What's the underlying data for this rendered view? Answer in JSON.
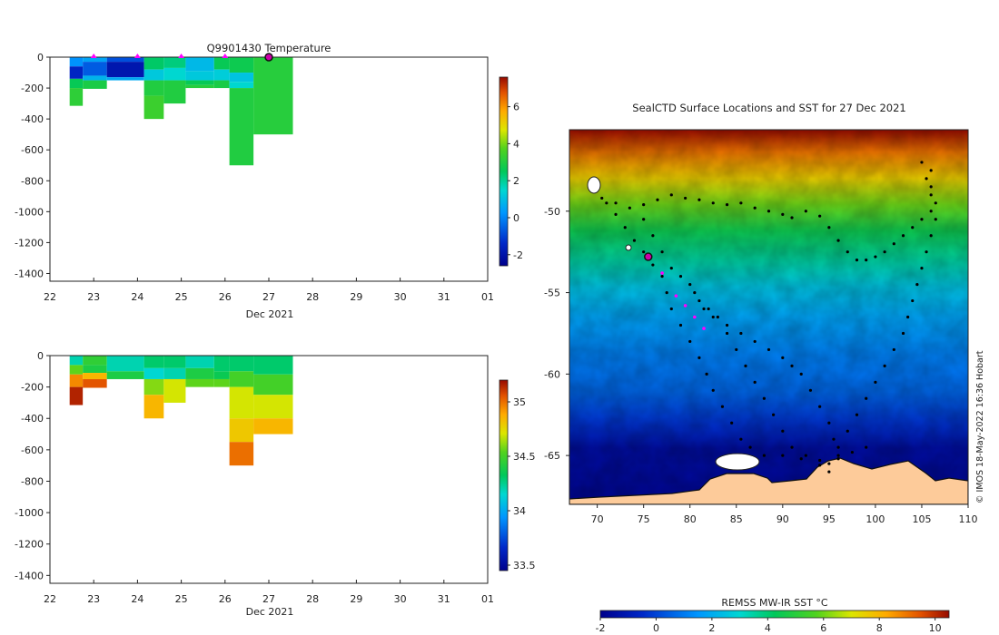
{
  "chart_data": [
    {
      "type": "heatmap",
      "title": "Q9901430  Temperature",
      "xlabel": "Dec 2021",
      "x_ticks": [
        "22",
        "23",
        "24",
        "25",
        "26",
        "27",
        "28",
        "29",
        "30",
        "31",
        "01"
      ],
      "xlim": [
        22,
        32
      ],
      "ylim": [
        -1450,
        0
      ],
      "y_ticks": [
        "0",
        "-200",
        "-400",
        "-600",
        "-800",
        "-1000",
        "-1200",
        "-1400"
      ],
      "colorbar": {
        "ticks": [
          "6",
          "4",
          "2",
          "0",
          "-2"
        ],
        "range": [
          -2.6,
          7.6
        ]
      },
      "profiles": [
        {
          "start": 22.45,
          "end": 22.75,
          "segments": [
            [
              0,
              60,
              0.2
            ],
            [
              60,
              140,
              -1.5
            ],
            [
              140,
              200,
              2.6
            ],
            [
              200,
              315,
              3.2
            ]
          ]
        },
        {
          "start": 22.75,
          "end": 23.3,
          "segments": [
            [
              0,
              30,
              0.5
            ],
            [
              30,
              120,
              -0.6
            ],
            [
              120,
              150,
              0.8
            ],
            [
              150,
              205,
              2.9
            ]
          ]
        },
        {
          "start": 23.3,
          "end": 24.15,
          "segments": [
            [
              0,
              30,
              -0.8
            ],
            [
              30,
              130,
              -1.9
            ],
            [
              130,
              150,
              0.6
            ]
          ]
        },
        {
          "start": 24.15,
          "end": 24.6,
          "segments": [
            [
              0,
              80,
              2.4
            ],
            [
              80,
              150,
              1.2
            ],
            [
              150,
              250,
              3.0
            ],
            [
              250,
              400,
              3.4
            ]
          ]
        },
        {
          "start": 24.6,
          "end": 25.1,
          "segments": [
            [
              0,
              70,
              2.2
            ],
            [
              70,
              150,
              1.5
            ],
            [
              150,
              300,
              3.0
            ]
          ]
        },
        {
          "start": 25.1,
          "end": 25.75,
          "segments": [
            [
              0,
              90,
              0.9
            ],
            [
              90,
              150,
              1.2
            ],
            [
              150,
              180,
              2.6
            ],
            [
              180,
              200,
              3.1
            ]
          ]
        },
        {
          "start": 25.75,
          "end": 26.1,
          "segments": [
            [
              0,
              80,
              2.6
            ],
            [
              80,
              150,
              1.3
            ],
            [
              150,
              200,
              2.9
            ]
          ]
        },
        {
          "start": 26.1,
          "end": 26.65,
          "segments": [
            [
              0,
              100,
              2.7
            ],
            [
              100,
              160,
              1.1
            ],
            [
              160,
              200,
              1.5
            ],
            [
              200,
              700,
              3.0
            ]
          ]
        },
        {
          "start": 26.65,
          "end": 27.55,
          "segments": [
            [
              0,
              500,
              3.1
            ]
          ]
        }
      ],
      "markers": [
        23.0,
        24.0,
        25.0,
        26.0
      ],
      "current_marker": 27.0
    },
    {
      "type": "heatmap",
      "title": "",
      "xlabel": "Dec 2021",
      "x_ticks": [
        "22",
        "23",
        "24",
        "25",
        "26",
        "27",
        "28",
        "29",
        "30",
        "31",
        "01"
      ],
      "xlim": [
        22,
        32
      ],
      "ylim": [
        -1450,
        0
      ],
      "y_ticks": [
        "0",
        "-200",
        "-400",
        "-600",
        "-800",
        "-1000",
        "-1200",
        "-1400"
      ],
      "colorbar": {
        "ticks": [
          "35",
          "34.5",
          "34",
          "33.5"
        ],
        "range": [
          33.45,
          35.2
        ]
      },
      "profiles": [
        {
          "start": 22.45,
          "end": 22.75,
          "segments": [
            [
              0,
              60,
              34.2
            ],
            [
              60,
              120,
              34.55
            ],
            [
              120,
              200,
              34.95
            ],
            [
              200,
              315,
              35.15
            ]
          ]
        },
        {
          "start": 22.75,
          "end": 23.3,
          "segments": [
            [
              0,
              60,
              34.45
            ],
            [
              60,
              110,
              34.4
            ],
            [
              110,
              150,
              34.85
            ],
            [
              150,
              205,
              35.05
            ]
          ]
        },
        {
          "start": 23.3,
          "end": 24.15,
          "segments": [
            [
              0,
              100,
              34.2
            ],
            [
              100,
              150,
              34.4
            ]
          ]
        },
        {
          "start": 24.15,
          "end": 24.6,
          "segments": [
            [
              0,
              80,
              34.3
            ],
            [
              80,
              150,
              34.15
            ],
            [
              150,
              250,
              34.6
            ],
            [
              250,
              400,
              34.85
            ]
          ]
        },
        {
          "start": 24.6,
          "end": 25.1,
          "segments": [
            [
              0,
              80,
              34.3
            ],
            [
              80,
              150,
              34.2
            ],
            [
              150,
              300,
              34.7
            ]
          ]
        },
        {
          "start": 25.1,
          "end": 25.75,
          "segments": [
            [
              0,
              80,
              34.2
            ],
            [
              80,
              150,
              34.4
            ],
            [
              150,
              200,
              34.55
            ]
          ]
        },
        {
          "start": 25.75,
          "end": 26.1,
          "segments": [
            [
              0,
              100,
              34.3
            ],
            [
              100,
              150,
              34.35
            ],
            [
              150,
              200,
              34.55
            ]
          ]
        },
        {
          "start": 26.1,
          "end": 26.65,
          "segments": [
            [
              0,
              100,
              34.3
            ],
            [
              100,
              200,
              34.5
            ],
            [
              200,
              400,
              34.7
            ],
            [
              400,
              550,
              34.8
            ],
            [
              550,
              700,
              35.0
            ]
          ]
        },
        {
          "start": 26.65,
          "end": 27.55,
          "segments": [
            [
              0,
              120,
              34.3
            ],
            [
              120,
              250,
              34.5
            ],
            [
              250,
              400,
              34.7
            ],
            [
              400,
              500,
              34.85
            ]
          ]
        }
      ]
    },
    {
      "type": "heatmap",
      "title": "SealCTD Surface Locations and SST for 27 Dec 2021",
      "xlabel": "",
      "ylabel": "",
      "x_ticks": [
        "70",
        "75",
        "80",
        "85",
        "90",
        "95",
        "100",
        "105",
        "110"
      ],
      "y_ticks": [
        "-50",
        "-55",
        "-60",
        "-65"
      ],
      "xlim": [
        67,
        110
      ],
      "ylim": [
        -68,
        -45
      ],
      "colorbar": {
        "label": "REMSS MW-IR SST °C",
        "ticks": [
          "-2",
          "0",
          "2",
          "4",
          "6",
          "8",
          "10"
        ],
        "range": [
          -2,
          10.5
        ]
      },
      "track_points": [
        [
          70.5,
          -49.2
        ],
        [
          72,
          -49.5
        ],
        [
          73.5,
          -49.8
        ],
        [
          75,
          -49.6
        ],
        [
          76.5,
          -49.3
        ],
        [
          78,
          -49.0
        ],
        [
          79.5,
          -49.2
        ],
        [
          81,
          -49.3
        ],
        [
          82.5,
          -49.5
        ],
        [
          84,
          -49.6
        ],
        [
          85.5,
          -49.5
        ],
        [
          87,
          -49.8
        ],
        [
          88.5,
          -50.0
        ],
        [
          90,
          -50.2
        ],
        [
          91,
          -50.4
        ],
        [
          92.5,
          -50.0
        ],
        [
          94,
          -50.3
        ],
        [
          95,
          -51.0
        ],
        [
          96,
          -51.8
        ],
        [
          97,
          -52.5
        ],
        [
          98,
          -53.0
        ],
        [
          99,
          -53.0
        ],
        [
          100,
          -52.8
        ],
        [
          101,
          -52.5
        ],
        [
          102,
          -52.0
        ],
        [
          103,
          -51.5
        ],
        [
          104,
          -51.0
        ],
        [
          105,
          -50.5
        ],
        [
          106,
          -50.0
        ],
        [
          106,
          -49.0
        ],
        [
          105.5,
          -48.0
        ],
        [
          105,
          -47.0
        ],
        [
          71,
          -49.5
        ],
        [
          72,
          -50.2
        ],
        [
          73,
          -51.0
        ],
        [
          74,
          -51.8
        ],
        [
          75,
          -52.5
        ],
        [
          76,
          -53.3
        ],
        [
          77,
          -54.0
        ],
        [
          77.5,
          -55.0
        ],
        [
          78,
          -56.0
        ],
        [
          79,
          -57.0
        ],
        [
          80,
          -58.0
        ],
        [
          81,
          -59.0
        ],
        [
          81.8,
          -60.0
        ],
        [
          82.5,
          -61.0
        ],
        [
          83.5,
          -62.0
        ],
        [
          84.5,
          -63.0
        ],
        [
          85.5,
          -64.0
        ],
        [
          86.5,
          -64.5
        ],
        [
          88,
          -65.0
        ],
        [
          90,
          -65.0
        ],
        [
          92,
          -65.2
        ],
        [
          94,
          -65.6
        ],
        [
          95,
          -66.0
        ],
        [
          95,
          -65.5
        ],
        [
          96,
          -64.5
        ],
        [
          97,
          -63.5
        ],
        [
          98,
          -62.5
        ],
        [
          99,
          -61.5
        ],
        [
          100,
          -60.5
        ],
        [
          101,
          -59.5
        ],
        [
          102,
          -58.5
        ],
        [
          103,
          -57.5
        ],
        [
          103.5,
          -56.5
        ],
        [
          104,
          -55.5
        ],
        [
          104.5,
          -54.5
        ],
        [
          105,
          -53.5
        ],
        [
          105.5,
          -52.5
        ],
        [
          106,
          -51.5
        ],
        [
          106.5,
          -50.5
        ],
        [
          106.5,
          -49.5
        ],
        [
          106,
          -48.5
        ],
        [
          106,
          -47.5
        ],
        [
          75,
          -50.5
        ],
        [
          76,
          -51.5
        ],
        [
          77,
          -52.5
        ],
        [
          78,
          -53.5
        ],
        [
          79,
          -54.0
        ],
        [
          80.5,
          -55.0
        ],
        [
          81.5,
          -56.0
        ],
        [
          82.5,
          -56.5
        ],
        [
          84,
          -57.0
        ],
        [
          85.5,
          -57.5
        ],
        [
          87,
          -58.0
        ],
        [
          88.5,
          -58.5
        ],
        [
          90,
          -59.0
        ],
        [
          91,
          -59.5
        ],
        [
          92,
          -60.0
        ],
        [
          93,
          -61.0
        ],
        [
          94,
          -62.0
        ],
        [
          95,
          -63.0
        ],
        [
          95.5,
          -64.0
        ],
        [
          96,
          -65.0
        ],
        [
          80,
          -54.5
        ],
        [
          81,
          -55.5
        ],
        [
          82,
          -56.0
        ],
        [
          83,
          -56.5
        ],
        [
          84,
          -57.5
        ],
        [
          85,
          -58.5
        ],
        [
          86,
          -59.5
        ],
        [
          87,
          -60.5
        ],
        [
          88,
          -61.5
        ],
        [
          89,
          -62.5
        ],
        [
          90,
          -63.5
        ],
        [
          91,
          -64.5
        ],
        [
          92.5,
          -65.0
        ],
        [
          94,
          -65.3
        ],
        [
          96,
          -65.2
        ],
        [
          97.5,
          -64.8
        ],
        [
          99,
          -64.5
        ]
      ],
      "recent_points": [
        [
          77,
          -53.8
        ],
        [
          78.5,
          -55.2
        ],
        [
          79.5,
          -55.8
        ],
        [
          80.5,
          -56.5
        ],
        [
          81.5,
          -57.2
        ]
      ],
      "current_position": [
        75.5,
        -52.8
      ]
    }
  ],
  "credit": "© IMOS 18-May-2022 16:36 Hobart"
}
